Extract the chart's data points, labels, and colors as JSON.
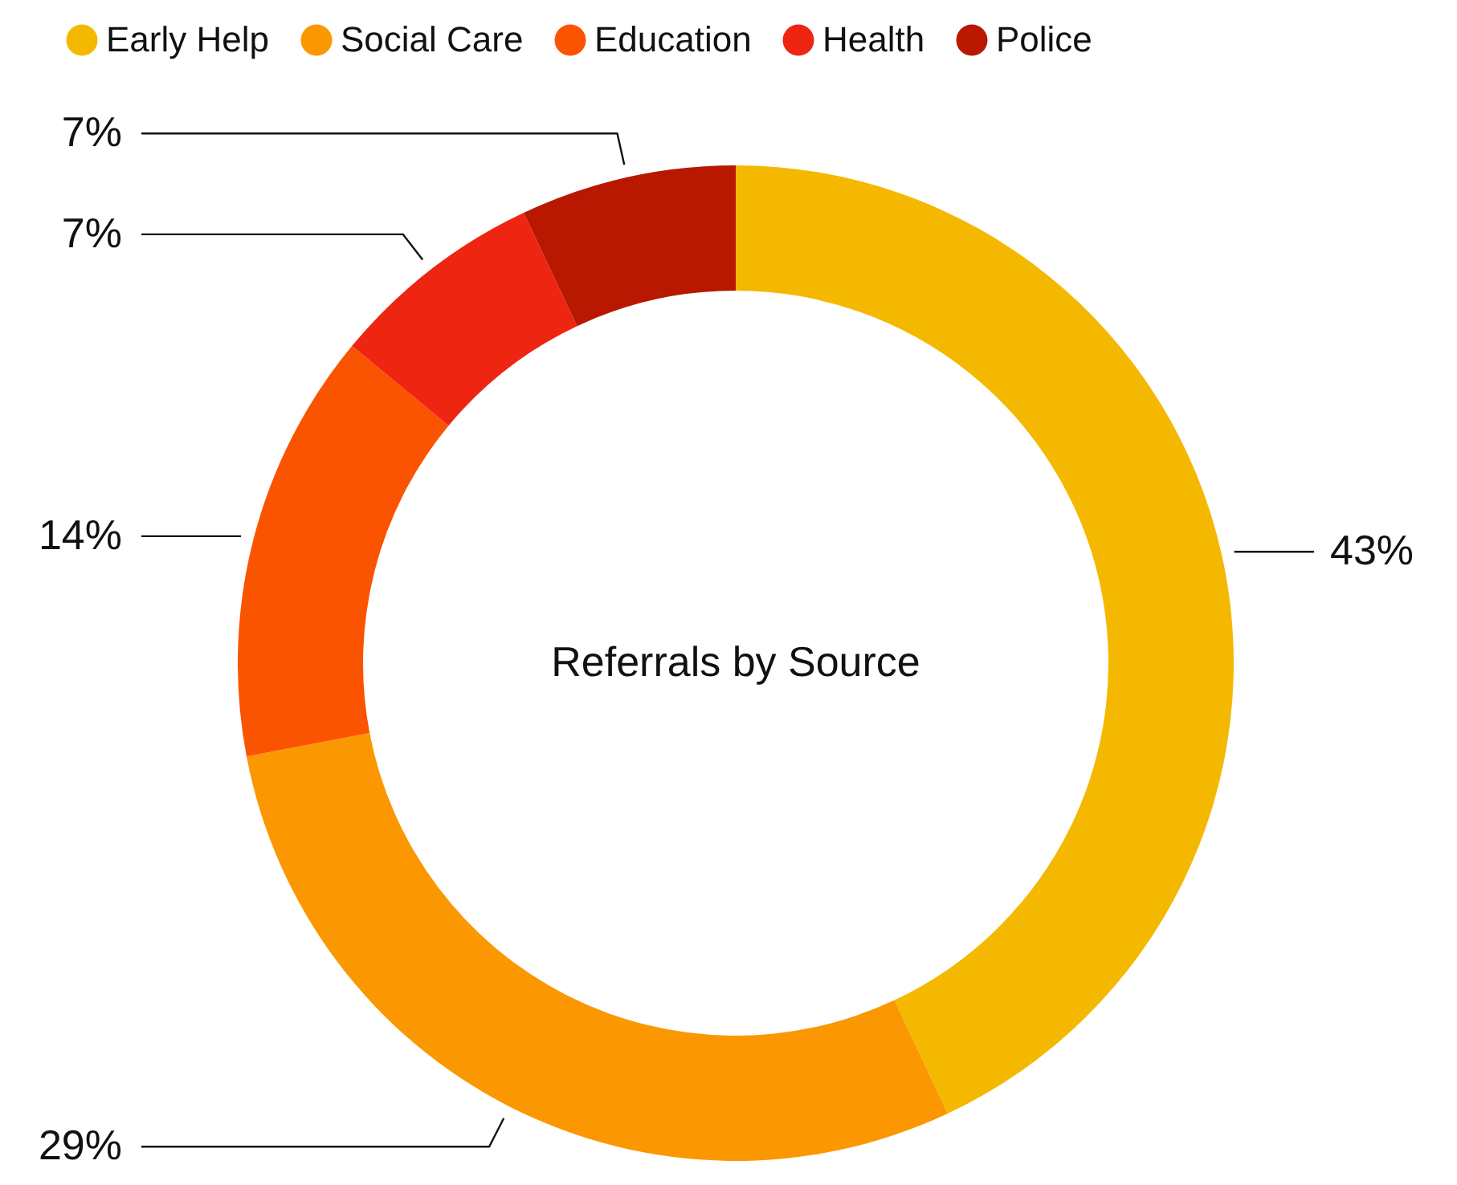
{
  "chart_data": {
    "type": "donut",
    "title": "Referrals by Source",
    "categories": [
      "Early Help",
      "Social Care",
      "Education",
      "Health",
      "Police"
    ],
    "values": [
      43,
      29,
      14,
      7,
      7
    ],
    "colors": [
      "#f5b800",
      "#fb9700",
      "#fb5400",
      "#ee2510",
      "#b81800"
    ],
    "value_labels": [
      "43%",
      "29%",
      "14%",
      "7%",
      "7%"
    ],
    "legend": "top"
  }
}
